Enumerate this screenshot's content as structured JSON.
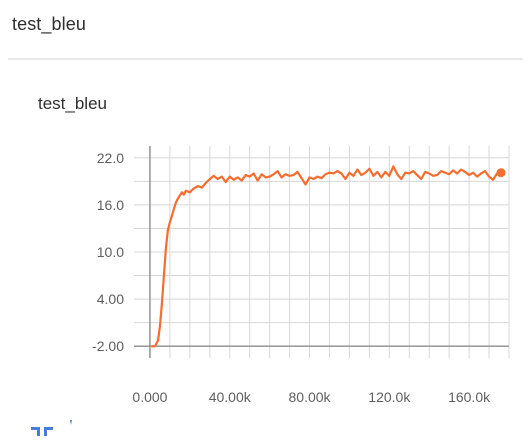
{
  "header": {
    "title": "test_bleu"
  },
  "card": {
    "title": "test_bleu",
    "line_color": "#f56d2f",
    "grid_color": "#d7d7d7",
    "axis_color": "#8e8e8e",
    "tick_color": "#5f5f5f",
    "controls": {
      "expand_icon": "expand-icon",
      "menu_icon": "menu-icon"
    }
  },
  "chart_data": {
    "type": "line",
    "title": "test_bleu",
    "xlabel": "",
    "ylabel": "",
    "xlim": [
      -8000,
      180000
    ],
    "ylim": [
      -3.5,
      23.5
    ],
    "grid": true,
    "x_ticks": [
      0,
      40000,
      80000,
      120000,
      160000
    ],
    "x_tick_labels": [
      "0.000",
      "40.00k",
      "80.00k",
      "120.0k",
      "160.0k"
    ],
    "y_ticks": [
      22,
      16,
      10,
      4,
      -2
    ],
    "y_tick_labels": [
      "22.0",
      "16.0",
      "10.0",
      "4.00",
      "-2.00"
    ],
    "series": [
      {
        "x": [
          1000,
          2500,
          4000,
          5000,
          6000,
          7000,
          8000,
          9000,
          10000,
          11000,
          12000,
          13000,
          14000,
          15000,
          16000,
          17000,
          18000,
          20000,
          22000,
          24000,
          26000,
          28000,
          30000,
          32000,
          34000,
          36000,
          38000,
          40000,
          42000,
          44000,
          46000,
          48000,
          50000,
          52000,
          54000,
          56000,
          58000,
          60000,
          62000,
          64000,
          66000,
          68000,
          70000,
          72000,
          74000,
          76000,
          78000,
          80000,
          82000,
          84000,
          86000,
          88000,
          90000,
          92000,
          94000,
          96000,
          98000,
          100000,
          102000,
          104000,
          106000,
          108000,
          110000,
          112000,
          114000,
          116000,
          118000,
          120000,
          122000,
          124000,
          126000,
          128000,
          130000,
          132000,
          134000,
          136000,
          138000,
          140000,
          142000,
          144000,
          146000,
          148000,
          150000,
          152000,
          154000,
          156000,
          158000,
          160000,
          162000,
          164000,
          166000,
          168000,
          170000,
          172000,
          174000,
          176000
        ],
        "values": [
          -2.0,
          -2.0,
          -1.3,
          0.5,
          3.5,
          7.0,
          10.5,
          12.8,
          13.8,
          14.6,
          15.5,
          16.3,
          16.8,
          17.2,
          17.6,
          17.3,
          17.8,
          17.6,
          18.1,
          18.4,
          18.2,
          18.8,
          19.3,
          19.7,
          19.3,
          19.6,
          18.9,
          19.6,
          19.2,
          19.5,
          19.1,
          19.8,
          19.6,
          20.0,
          19.1,
          19.9,
          19.5,
          19.6,
          19.9,
          20.3,
          19.5,
          19.9,
          19.7,
          19.8,
          20.2,
          19.4,
          18.6,
          19.5,
          19.3,
          19.6,
          19.4,
          19.9,
          20.1,
          20.0,
          20.3,
          20.0,
          19.3,
          20.1,
          19.7,
          20.5,
          19.8,
          20.1,
          20.6,
          19.7,
          20.2,
          19.5,
          20.2,
          19.7,
          20.9,
          19.9,
          19.3,
          20.1,
          20.0,
          20.3,
          19.8,
          19.3,
          20.2,
          20.0,
          19.7,
          19.8,
          20.3,
          20.1,
          19.9,
          20.4,
          20.0,
          20.5,
          20.2,
          19.8,
          20.1,
          19.6,
          20.0,
          20.3,
          19.6,
          19.2,
          20.0,
          20.1
        ]
      }
    ]
  }
}
